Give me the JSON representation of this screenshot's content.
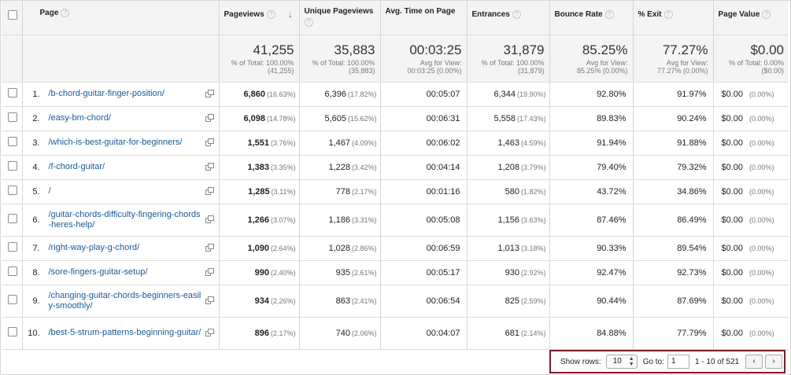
{
  "columns": {
    "page": "Page",
    "pageviews": "Pageviews",
    "unique": "Unique Pageviews",
    "avgtime": "Avg. Time on Page",
    "entrances": "Entrances",
    "bounce": "Bounce Rate",
    "exit": "% Exit",
    "value": "Page Value"
  },
  "icons": {
    "help": "?",
    "sort": "↓",
    "select_arrows": "▲▼",
    "prev": "‹",
    "next": "›"
  },
  "summary": {
    "pageviews": {
      "value": "41,255",
      "line1": "% of Total: 100.00%",
      "line2": "(41,255)"
    },
    "unique": {
      "value": "35,883",
      "line1": "% of Total: 100.00%",
      "line2": "(35,883)"
    },
    "avgtime": {
      "value": "00:03:25",
      "line1": "Avg for View:",
      "line2": "00:03:25 (0.00%)"
    },
    "entrances": {
      "value": "31,879",
      "line1": "% of Total: 100.00%",
      "line2": "(31,879)"
    },
    "bounce": {
      "value": "85.25%",
      "line1": "Avg for View:",
      "line2": "85.25% (0.00%)"
    },
    "exit": {
      "value": "77.27%",
      "line1": "Avg for View:",
      "line2": "77.27% (0.00%)"
    },
    "value": {
      "value": "$0.00",
      "line1": "% of Total: 0.00%",
      "line2": "($0.00)"
    }
  },
  "rows": [
    {
      "rank": "1.",
      "page": "/b-chord-guitar-finger-position/",
      "pv": "6,860",
      "pv_pct": "(16.63%)",
      "upv": "6,396",
      "upv_pct": "(17.82%)",
      "time": "00:05:07",
      "ent": "6,344",
      "ent_pct": "(19.90%)",
      "bounce": "92.80%",
      "exit": "91.97%",
      "val": "$0.00",
      "val_pct": "(0.00%)"
    },
    {
      "rank": "2.",
      "page": "/easy-bm-chord/",
      "pv": "6,098",
      "pv_pct": "(14.78%)",
      "upv": "5,605",
      "upv_pct": "(15.62%)",
      "time": "00:06:31",
      "ent": "5,558",
      "ent_pct": "(17.43%)",
      "bounce": "89.83%",
      "exit": "90.24%",
      "val": "$0.00",
      "val_pct": "(0.00%)"
    },
    {
      "rank": "3.",
      "page": "/which-is-best-guitar-for-beginners/",
      "pv": "1,551",
      "pv_pct": "(3.76%)",
      "upv": "1,467",
      "upv_pct": "(4.09%)",
      "time": "00:06:02",
      "ent": "1,463",
      "ent_pct": "(4.59%)",
      "bounce": "91.94%",
      "exit": "91.88%",
      "val": "$0.00",
      "val_pct": "(0.00%)"
    },
    {
      "rank": "4.",
      "page": "/f-chord-guitar/",
      "pv": "1,383",
      "pv_pct": "(3.35%)",
      "upv": "1,228",
      "upv_pct": "(3.42%)",
      "time": "00:04:14",
      "ent": "1,208",
      "ent_pct": "(3.79%)",
      "bounce": "79.40%",
      "exit": "79.32%",
      "val": "$0.00",
      "val_pct": "(0.00%)"
    },
    {
      "rank": "5.",
      "page": "/",
      "pv": "1,285",
      "pv_pct": "(3.11%)",
      "upv": "778",
      "upv_pct": "(2.17%)",
      "time": "00:01:16",
      "ent": "580",
      "ent_pct": "(1.82%)",
      "bounce": "43.72%",
      "exit": "34.86%",
      "val": "$0.00",
      "val_pct": "(0.00%)"
    },
    {
      "rank": "6.",
      "page": "/guitar-chords-difficulty-fingering-chords-heres-help/",
      "pv": "1,266",
      "pv_pct": "(3.07%)",
      "upv": "1,186",
      "upv_pct": "(3.31%)",
      "time": "00:05:08",
      "ent": "1,156",
      "ent_pct": "(3.63%)",
      "bounce": "87.46%",
      "exit": "86.49%",
      "val": "$0.00",
      "val_pct": "(0.00%)"
    },
    {
      "rank": "7.",
      "page": "/right-way-play-g-chord/",
      "pv": "1,090",
      "pv_pct": "(2.64%)",
      "upv": "1,028",
      "upv_pct": "(2.86%)",
      "time": "00:06:59",
      "ent": "1,013",
      "ent_pct": "(3.18%)",
      "bounce": "90.33%",
      "exit": "89.54%",
      "val": "$0.00",
      "val_pct": "(0.00%)"
    },
    {
      "rank": "8.",
      "page": "/sore-fingers-guitar-setup/",
      "pv": "990",
      "pv_pct": "(2.40%)",
      "upv": "935",
      "upv_pct": "(2.61%)",
      "time": "00:05:17",
      "ent": "930",
      "ent_pct": "(2.92%)",
      "bounce": "92.47%",
      "exit": "92.73%",
      "val": "$0.00",
      "val_pct": "(0.00%)"
    },
    {
      "rank": "9.",
      "page": "/changing-guitar-chords-beginners-easily-smoothly/",
      "pv": "934",
      "pv_pct": "(2.26%)",
      "upv": "863",
      "upv_pct": "(2.41%)",
      "time": "00:06:54",
      "ent": "825",
      "ent_pct": "(2.59%)",
      "bounce": "90.44%",
      "exit": "87.69%",
      "val": "$0.00",
      "val_pct": "(0.00%)"
    },
    {
      "rank": "10.",
      "page": "/best-5-strum-patterns-beginning-guitar/",
      "pv": "896",
      "pv_pct": "(2.17%)",
      "upv": "740",
      "upv_pct": "(2.06%)",
      "time": "00:04:07",
      "ent": "681",
      "ent_pct": "(2.14%)",
      "bounce": "84.88%",
      "exit": "77.79%",
      "val": "$0.00",
      "val_pct": "(0.00%)"
    }
  ],
  "pager": {
    "show_rows_label": "Show rows:",
    "show_rows_value": "10",
    "goto_label": "Go to:",
    "goto_value": "1",
    "range": "1 - 10 of 521"
  }
}
